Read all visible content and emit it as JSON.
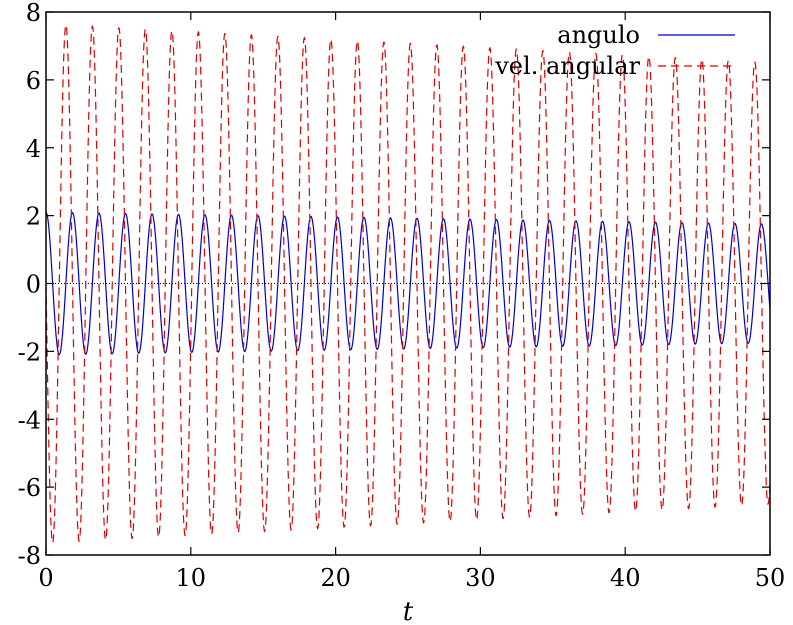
{
  "chart_data": {
    "type": "line",
    "title": "",
    "xlabel": "t",
    "ylabel": "",
    "xlim": [
      0,
      50
    ],
    "ylim": [
      -8,
      8
    ],
    "xticks": [
      "0",
      "10",
      "20",
      "30",
      "40",
      "50"
    ],
    "yticks": [
      "-8",
      "-6",
      "-4",
      "-2",
      "0",
      "2",
      "4",
      "6",
      "8"
    ],
    "grid": false,
    "zero_line": true,
    "legend_position": "top-right",
    "series": [
      {
        "name": "angulo",
        "color": "#0000cc",
        "style": "solid",
        "initial_value": 2.1,
        "amplitude_start": 2.1,
        "amplitude_end": 1.75,
        "period": 1.83,
        "phase": "cosine"
      },
      {
        "name": "vel. angular",
        "color": "#dd0000",
        "style": "dashed",
        "initial_value": 0,
        "amplitude_start": 7.65,
        "amplitude_end": 6.5,
        "period": 1.83,
        "phase": "negative-sine"
      }
    ]
  }
}
